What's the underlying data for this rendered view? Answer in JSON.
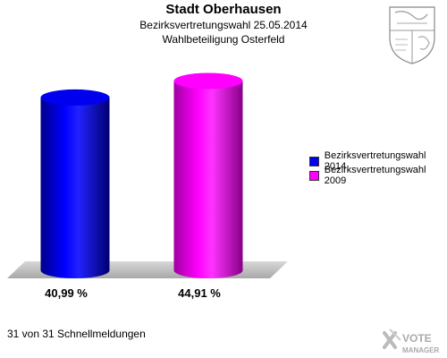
{
  "header": {
    "title": "Stadt Oberhausen",
    "subtitle": "Bezirksvertretungswahl 25.05.2014",
    "subtitle2": "Wahlbeteiligung Osterfeld"
  },
  "chart_data": {
    "type": "bar",
    "title": "Stadt Oberhausen",
    "subtitle": "Bezirksvertretungswahl 25.05.2014 / Wahlbeteiligung Osterfeld",
    "categories": [
      "Bezirksvertretungswahl 2014",
      "Bezirksvertretungswahl 2009"
    ],
    "values": [
      40.99,
      44.91
    ],
    "value_labels": [
      "40,99 %",
      "44,91 %"
    ],
    "colors": [
      "#0000ee",
      "#ff00ff"
    ],
    "ylim": [
      0,
      50
    ],
    "grid": false,
    "legend_placement": "right"
  },
  "legend": {
    "items": [
      {
        "label": "Bezirksvertretungswahl 2014",
        "color": "#0000ee"
      },
      {
        "label": "Bezirksvertretungswahl 2009",
        "color": "#ff00ff"
      }
    ]
  },
  "footer": {
    "text": "31 von 31 Schnellmeldungen"
  },
  "branding": {
    "logo_text": "VOTE MANAGER",
    "crest_icon": "coat-of-arms-icon"
  }
}
